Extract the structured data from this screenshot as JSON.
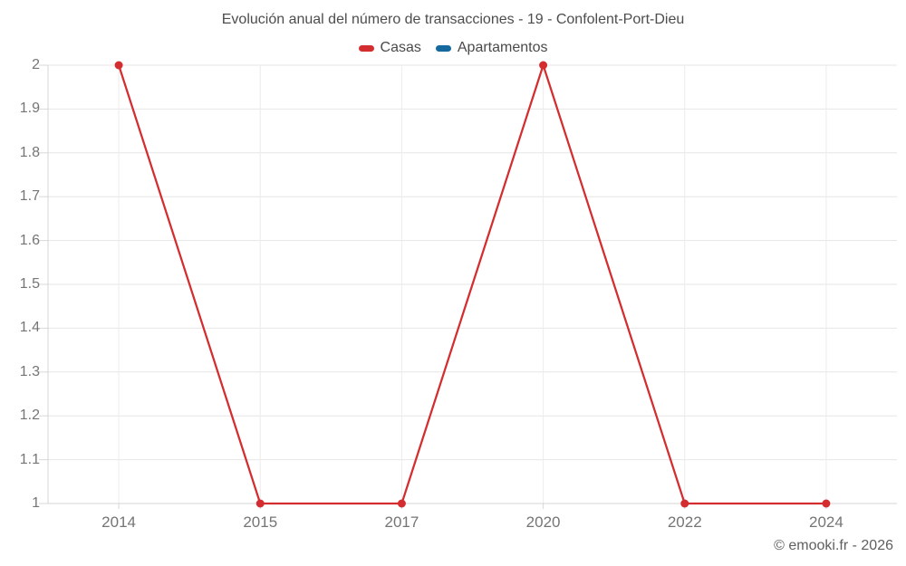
{
  "title": "Evolución anual del número de transacciones - 19 - Confolent-Port-Dieu",
  "legend": {
    "items": [
      {
        "label": "Casas",
        "color": "#d32d2f"
      },
      {
        "label": "Apartamentos",
        "color": "#16699e"
      }
    ]
  },
  "footer": {
    "copyright": "© emooki.fr - 2026"
  },
  "chart_data": {
    "type": "line",
    "title": "Evolución anual del número de transacciones - 19 - Confolent-Port-Dieu",
    "categories": [
      "2014",
      "2015",
      "2017",
      "2020",
      "2022",
      "2024"
    ],
    "series": [
      {
        "name": "Casas",
        "color": "#d32d2f",
        "values": [
          2,
          1,
          1,
          2,
          1,
          1
        ]
      },
      {
        "name": "Apartamentos",
        "color": "#16699e",
        "values": []
      }
    ],
    "xlabel": "",
    "ylabel": "",
    "ylim": [
      1,
      2
    ],
    "ytick_step": 0.1,
    "yticks": [
      1,
      1.1,
      1.2,
      1.3,
      1.4,
      1.5,
      1.6,
      1.7,
      1.8,
      1.9,
      2
    ],
    "grid": true,
    "legend_position": "top",
    "marker": "circle"
  }
}
